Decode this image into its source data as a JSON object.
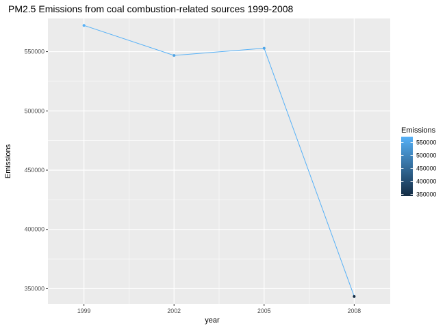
{
  "chart_data": {
    "type": "line",
    "title": "PM2.5 Emissions from coal combustion-related sources 1999-2008",
    "xlabel": "year",
    "ylabel": "Emissions",
    "x": [
      1999,
      2002,
      2005,
      2008
    ],
    "x_tick_labels": [
      "1999",
      "2002",
      "2005",
      "2008"
    ],
    "y_ticks": [
      350000,
      400000,
      450000,
      500000,
      550000
    ],
    "y_tick_labels": [
      "350000",
      "400000",
      "450000",
      "500000",
      "550000"
    ],
    "ylim": [
      337000,
      578000
    ],
    "xlim": [
      1997.8,
      2009.2
    ],
    "series": [
      {
        "values": [
          572126,
          546789,
          552881,
          343432
        ]
      }
    ],
    "grid": true,
    "panel_background": "#ebebeb",
    "grid_color": "#ffffff",
    "line_color": "#56b1f7",
    "legend": {
      "title": "Emissions",
      "position": "right",
      "type": "colorbar",
      "low_color": "#132b43",
      "high_color": "#56b1f7",
      "min": 343432,
      "max": 572126,
      "tick_values": [
        350000,
        400000,
        450000,
        500000,
        550000
      ],
      "tick_labels": [
        "350000",
        "400000",
        "450000",
        "500000",
        "550000"
      ]
    }
  }
}
